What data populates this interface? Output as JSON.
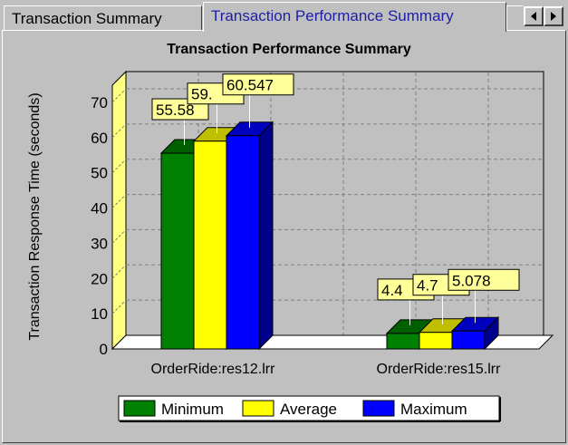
{
  "tabs": [
    {
      "label": "Transaction Summary",
      "active": false
    },
    {
      "label": "Transaction Performance Summary",
      "active": true
    }
  ],
  "chart_data": {
    "type": "bar",
    "title": "Transaction Performance Summary",
    "ylabel": "Transaction Response Time (seconds)",
    "xlabel": "",
    "ylim": [
      0,
      75
    ],
    "yticks": [
      0,
      10,
      20,
      30,
      40,
      50,
      60,
      70
    ],
    "categories": [
      "OrderRide:res12.lrr",
      "OrderRide:res15.lrr"
    ],
    "series": [
      {
        "name": "Minimum",
        "values": [
          55.58,
          4.4
        ],
        "labels": [
          "55.58",
          "4.4"
        ]
      },
      {
        "name": "Average",
        "values": [
          59.0,
          4.7
        ],
        "labels": [
          "59.",
          "4.7"
        ]
      },
      {
        "name": "Maximum",
        "values": [
          60.547,
          5.078
        ],
        "labels": [
          "60.547",
          "5.078"
        ]
      }
    ],
    "grid": true,
    "legend": "bottom"
  },
  "colors": {
    "minimum": "#008000",
    "average": "#ffff00",
    "maximum": "#0000ff",
    "plot_background": "#c0c0c0",
    "wall": "#ffff80",
    "label_box": "#ffff99",
    "tab_active_text": "#1e1ea8"
  }
}
